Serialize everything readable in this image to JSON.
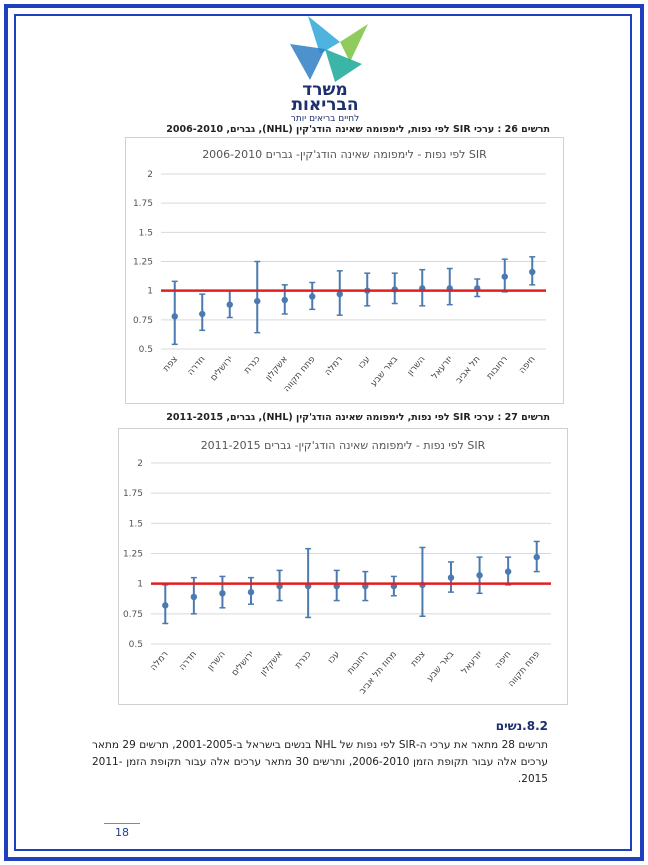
{
  "logo": {
    "line1": "משרד",
    "line2": "הבריאות",
    "tagline": "לחיים בריאים יותר"
  },
  "chart_data": [
    {
      "type": "errorbar",
      "caption": "תרשים 26 : ערכי SIR לפי נפות, לימפומה שאינה הודג'קין (NHL), גברים, 2006-2010",
      "title": "SIR לפי נפות - לימפומה שאינה הודג'קין- גברים 2006-2010",
      "categories": [
        "צפת",
        "חדרה",
        "ירושלים",
        "כנרת",
        "אשקלון",
        "פתח תקווה",
        "רמלה",
        "עכו",
        "באר שבע",
        "השרון",
        "יזרעאל",
        "תל אביב",
        "רחובות",
        "חיפה"
      ],
      "values": [
        0.78,
        0.8,
        0.88,
        0.91,
        0.92,
        0.95,
        0.97,
        1.0,
        1.01,
        1.02,
        1.02,
        1.02,
        1.12,
        1.16
      ],
      "lower": [
        0.54,
        0.66,
        0.77,
        0.64,
        0.8,
        0.84,
        0.79,
        0.87,
        0.89,
        0.87,
        0.88,
        0.95,
        0.99,
        1.05
      ],
      "upper": [
        1.08,
        0.97,
        1.0,
        1.25,
        1.05,
        1.07,
        1.17,
        1.15,
        1.15,
        1.18,
        1.19,
        1.1,
        1.27,
        1.29
      ],
      "color": "#4a7ab0",
      "reference_line": 1,
      "reference_color": "#e02020",
      "ylim": [
        0.5,
        2
      ],
      "yticks": [
        0.5,
        0.75,
        1,
        1.25,
        1.5,
        1.75,
        2
      ],
      "grid": true
    },
    {
      "type": "errorbar",
      "caption": "תרשים 27 : ערכי SIR לפי נפות, לימפומה שאינה הודג'קין (NHL), גברים, 2011-2015",
      "title": "SIR לפי נפות - לימפומה שאינה הודג'קין- גברים 2011-2015",
      "categories": [
        "רמלה",
        "חדרה",
        "השרון",
        "ירושלים",
        "אשקלון",
        "כנרת",
        "עכו",
        "רחובות",
        "מחוז תל אביב",
        "צפת",
        "באר שבע",
        "יזרעאל",
        "חיפה",
        "פתח תקווה"
      ],
      "values": [
        0.82,
        0.89,
        0.92,
        0.93,
        0.98,
        0.98,
        0.98,
        0.98,
        0.98,
        0.99,
        1.05,
        1.07,
        1.1,
        1.22
      ],
      "lower": [
        0.67,
        0.75,
        0.8,
        0.83,
        0.86,
        0.72,
        0.86,
        0.86,
        0.9,
        0.73,
        0.93,
        0.92,
        0.99,
        1.1
      ],
      "upper": [
        0.99,
        1.05,
        1.06,
        1.05,
        1.11,
        1.29,
        1.11,
        1.1,
        1.06,
        1.3,
        1.18,
        1.22,
        1.22,
        1.35
      ],
      "color": "#4a7ab0",
      "reference_line": 1,
      "reference_color": "#e02020",
      "ylim": [
        0.5,
        2
      ],
      "yticks": [
        0.5,
        0.75,
        1,
        1.25,
        1.5,
        1.75,
        2
      ],
      "grid": true
    }
  ],
  "section": {
    "heading": "8.2.נשים",
    "paragraph": "תרשים 28 מתאר את ערכי ה-SIR לפי נפות של NHL בנשים בישראל ב-2001-2005, תרשים 29 מתאר ערכים אלה עבור תקופת הזמן 2006-2010, ותרשים 30 מתאר ערכים אלה עבור תקופת הזמן 2011-2015."
  },
  "page_number": "18"
}
